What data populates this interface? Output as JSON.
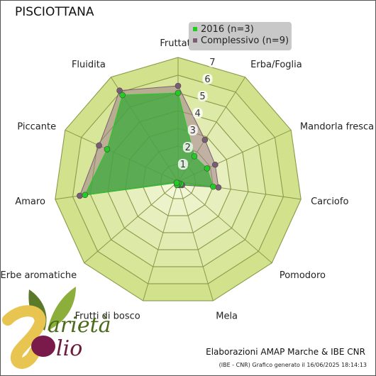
{
  "chart_data": {
    "type": "radar",
    "title": "PISCIOTTANA",
    "axes": [
      "Fruttato",
      "Erba/Foglia",
      "Mandorla fresca",
      "Carciofo",
      "Pomodoro",
      "Mela",
      "Frutti di bosco",
      "Erbe aromatiche",
      "Amaro",
      "Piccante",
      "Fluidita"
    ],
    "rlim": [
      0,
      7
    ],
    "rticks": [
      1,
      2,
      3,
      4,
      5,
      6,
      7
    ],
    "series": [
      {
        "name": "2016 (n=3)",
        "color": "#22cc22",
        "fill": "#3aaa3a",
        "values": [
          5.0,
          1.7,
          1.8,
          2.0,
          0.2,
          0.1,
          0.2,
          0.1,
          5.3,
          4.4,
          5.8
        ]
      },
      {
        "name": "Complessivo (n=9)",
        "color": "#7a5c74",
        "fill": "#a07e8a",
        "values": [
          5.4,
          2.8,
          2.3,
          2.3,
          0.3,
          0.2,
          0.2,
          0.1,
          5.6,
          4.9,
          6.1
        ]
      }
    ],
    "legend_position": "top-right",
    "grid": true
  },
  "footer": {
    "credit": "Elaborazioni AMAP Marche & IBE CNR",
    "generated": "(IBE - CNR) Grafico generato il 16/06/2025 18:14:13"
  },
  "logo": {
    "text": "Varietà Olio"
  }
}
